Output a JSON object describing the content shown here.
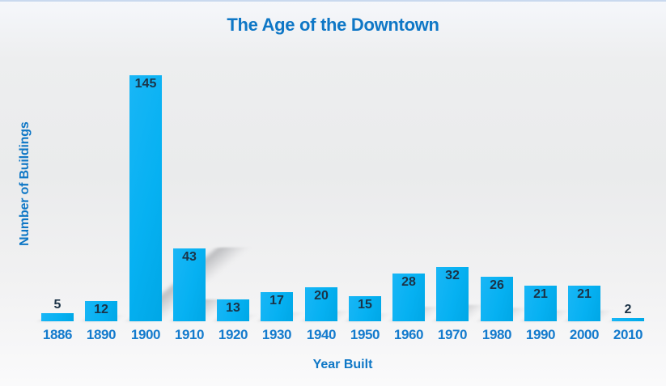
{
  "chart_data": {
    "type": "bar",
    "title": "The Age of the Downtown",
    "xlabel": "Year Built",
    "ylabel": "Number of Buildings",
    "categories": [
      "1886",
      "1890",
      "1900",
      "1910",
      "1920",
      "1930",
      "1940",
      "1950",
      "1960",
      "1970",
      "1980",
      "1990",
      "2000",
      "2010"
    ],
    "values": [
      5,
      12,
      145,
      43,
      13,
      17,
      20,
      15,
      28,
      32,
      26,
      21,
      21,
      2
    ],
    "ylim": [
      0,
      150
    ],
    "grid": false,
    "legend": "none",
    "value_labels": "shown on each bar; placed above bar when bar is too short",
    "colors": {
      "bar_fill": "#06B1F2",
      "value_label": "#1C3347",
      "axis_tick_text": "#147BCD",
      "title_text": "#0E77C6",
      "background_top": "#F5F7FB",
      "background_bottom": "#FAFAFB",
      "top_edge_line": "#C9D9EF"
    }
  }
}
